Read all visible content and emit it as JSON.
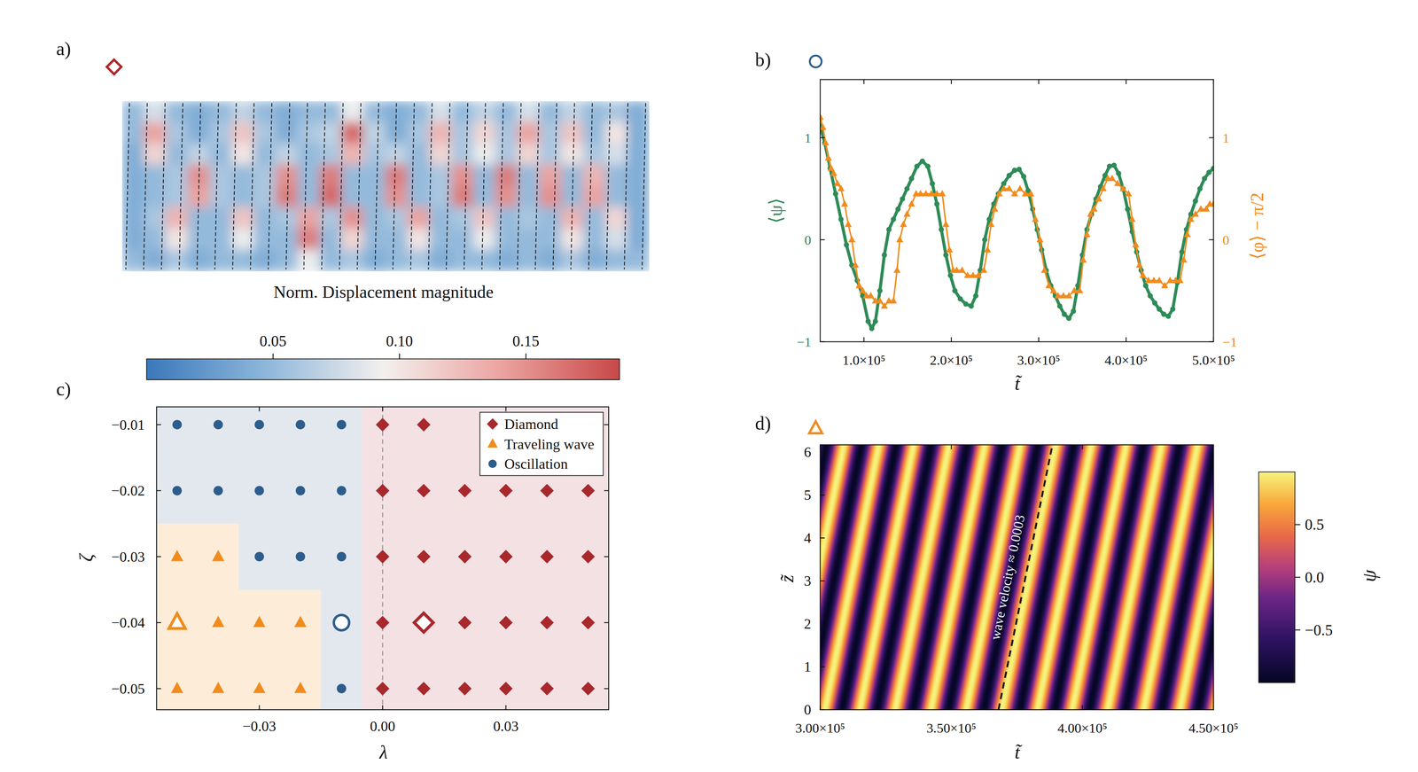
{
  "chart_data": [
    {
      "type": "heatmap",
      "panel_label": "a)",
      "marker": "diamond",
      "color": "#a8282c",
      "cells": [
        [
          0.05,
          0.08,
          0.05,
          0.04,
          0.05,
          0.07,
          0.05,
          0.04,
          0.05,
          0.05,
          0.09,
          0.05,
          0.04,
          0.05,
          0.08,
          0.05,
          0.07,
          0.05,
          0.08,
          0.05,
          0.07,
          0.05,
          0.06,
          0.04
        ],
        [
          0.05,
          0.14,
          0.06,
          0.04,
          0.06,
          0.12,
          0.06,
          0.04,
          0.06,
          0.07,
          0.17,
          0.07,
          0.04,
          0.06,
          0.13,
          0.06,
          0.11,
          0.06,
          0.14,
          0.06,
          0.12,
          0.05,
          0.1,
          0.04
        ],
        [
          0.04,
          0.11,
          0.05,
          0.07,
          0.05,
          0.1,
          0.05,
          0.07,
          0.05,
          0.06,
          0.13,
          0.06,
          0.07,
          0.05,
          0.11,
          0.06,
          0.09,
          0.06,
          0.11,
          0.06,
          0.1,
          0.06,
          0.08,
          0.04
        ],
        [
          0.04,
          0.05,
          0.06,
          0.15,
          0.06,
          0.05,
          0.06,
          0.15,
          0.05,
          0.16,
          0.05,
          0.05,
          0.16,
          0.05,
          0.06,
          0.15,
          0.05,
          0.16,
          0.05,
          0.14,
          0.05,
          0.13,
          0.05,
          0.04
        ],
        [
          0.04,
          0.05,
          0.06,
          0.14,
          0.06,
          0.05,
          0.06,
          0.16,
          0.05,
          0.17,
          0.05,
          0.05,
          0.15,
          0.05,
          0.06,
          0.16,
          0.05,
          0.15,
          0.05,
          0.15,
          0.05,
          0.14,
          0.05,
          0.04
        ],
        [
          0.04,
          0.06,
          0.13,
          0.05,
          0.05,
          0.12,
          0.05,
          0.06,
          0.14,
          0.06,
          0.15,
          0.05,
          0.06,
          0.14,
          0.05,
          0.06,
          0.12,
          0.05,
          0.06,
          0.05,
          0.13,
          0.05,
          0.11,
          0.04
        ],
        [
          0.04,
          0.05,
          0.1,
          0.05,
          0.05,
          0.09,
          0.05,
          0.05,
          0.16,
          0.05,
          0.11,
          0.05,
          0.05,
          0.1,
          0.05,
          0.05,
          0.09,
          0.05,
          0.05,
          0.05,
          0.1,
          0.05,
          0.08,
          0.04
        ],
        [
          0.05,
          0.04,
          0.06,
          0.04,
          0.05,
          0.05,
          0.04,
          0.05,
          0.09,
          0.05,
          0.06,
          0.04,
          0.05,
          0.06,
          0.04,
          0.05,
          0.05,
          0.04,
          0.05,
          0.04,
          0.06,
          0.04,
          0.05,
          0.05
        ]
      ],
      "colorbar": {
        "label": "Norm. Displacement magnitude",
        "range": [
          0,
          0.187
        ],
        "ticks": [
          0.05,
          {
            "value": 0.1,
            "label": "0.10"
          },
          0.15
        ]
      }
    },
    {
      "type": "line",
      "panel_label": "b)",
      "marker": "circle",
      "color": "#2d5d8c",
      "xlabel": "t̃",
      "ylabel": "⟨ψ⟩",
      "y2label": "⟨φ⟩ − π/2",
      "xlim": [
        50000,
        500000
      ],
      "xticks": [
        {
          "value": 100000,
          "label": "1.0×10⁵"
        },
        {
          "value": 200000,
          "label": "2.0×10⁵"
        },
        {
          "value": 300000,
          "label": "3.0×10⁵"
        },
        {
          "value": 400000,
          "label": "4.0×10⁵"
        },
        {
          "value": 500000,
          "label": "5.0×10⁵"
        }
      ],
      "ylim": [
        -1,
        1.57
      ],
      "yticks": [
        {
          "value": -1,
          "label": "−1"
        },
        0,
        1
      ],
      "y2lim": [
        -1,
        1.57
      ],
      "y2ticks": [
        {
          "value": -1,
          "label": "−1"
        },
        0,
        1
      ],
      "series": [
        {
          "color": "#2e8b57",
          "marker": "circle",
          "line_style": "solid",
          "x": [
            50000,
            55200,
            61400,
            67600,
            73800,
            80000,
            86200,
            92400,
            98600,
            104800,
            109000,
            113100,
            118300,
            123400,
            128600,
            133800,
            139000,
            144100,
            149300,
            154500,
            160700,
            166900,
            173100,
            178300,
            183500,
            188600,
            193800,
            199000,
            204100,
            210300,
            216600,
            222800,
            228000,
            233100,
            238300,
            243400,
            248600,
            253800,
            260000,
            266200,
            272400,
            277600,
            282800,
            287900,
            293100,
            298300,
            303400,
            308600,
            313800,
            319000,
            324100,
            329300,
            334500,
            339700,
            344800,
            350000,
            355200,
            360400,
            365500,
            370700,
            375900,
            381000,
            386200,
            391400,
            396600,
            401700,
            406900,
            412100,
            417200,
            422400,
            427600,
            432800,
            437900,
            443100,
            448300,
            453400,
            458600,
            463800,
            469000,
            474100,
            479300,
            484500,
            489700,
            494800,
            500000
          ],
          "values": [
            1.12,
            0.95,
            0.7,
            0.45,
            0.2,
            -0.05,
            -0.25,
            -0.4,
            -0.55,
            -0.8,
            -0.87,
            -0.8,
            -0.5,
            -0.15,
            0.1,
            0.2,
            0.3,
            0.4,
            0.5,
            0.6,
            0.72,
            0.77,
            0.72,
            0.55,
            0.35,
            0.1,
            -0.15,
            -0.35,
            -0.5,
            -0.58,
            -0.63,
            -0.65,
            -0.55,
            -0.3,
            0,
            0.2,
            0.35,
            0.45,
            0.55,
            0.63,
            0.68,
            0.69,
            0.62,
            0.48,
            0.3,
            0.1,
            -0.1,
            -0.3,
            -0.45,
            -0.55,
            -0.65,
            -0.73,
            -0.77,
            -0.7,
            -0.45,
            -0.15,
            0.1,
            0.25,
            0.4,
            0.52,
            0.63,
            0.72,
            0.73,
            0.65,
            0.5,
            0.3,
            0.08,
            -0.12,
            -0.3,
            -0.45,
            -0.55,
            -0.62,
            -0.68,
            -0.73,
            -0.75,
            -0.68,
            -0.42,
            -0.12,
            0.1,
            0.25,
            0.38,
            0.5,
            0.6,
            0.66,
            0.7
          ]
        },
        {
          "color": "#f08c1e",
          "marker": "triangle",
          "line_style": "solid",
          "axis": "y2",
          "x": [
            50000,
            53100,
            56200,
            59300,
            62400,
            65500,
            69700,
            73800,
            77900,
            82100,
            86200,
            90300,
            94500,
            98600,
            102800,
            107900,
            113100,
            118300,
            123400,
            128600,
            133800,
            137900,
            141000,
            145200,
            149300,
            154500,
            159700,
            164800,
            171000,
            177200,
            183500,
            189700,
            193800,
            197900,
            202100,
            206200,
            212400,
            218600,
            224800,
            231000,
            237200,
            241400,
            245500,
            249700,
            254800,
            260000,
            266200,
            272400,
            278600,
            284800,
            291000,
            296200,
            301400,
            306600,
            311700,
            316900,
            322100,
            328300,
            334500,
            340700,
            346900,
            351000,
            355200,
            359300,
            363400,
            368600,
            373800,
            379000,
            384100,
            390300,
            396600,
            402800,
            406900,
            411000,
            415200,
            419300,
            425500,
            431700,
            437900,
            444100,
            450300,
            456600,
            461700,
            465900,
            470000,
            474100,
            479300,
            485500,
            491700,
            495800,
            500000
          ],
          "values": [
            1.2,
            1.1,
            0.95,
            0.8,
            0.7,
            0.65,
            0.55,
            0.5,
            0.35,
            0.15,
            0,
            -0.25,
            -0.45,
            -0.5,
            -0.55,
            -0.55,
            -0.6,
            -0.6,
            -0.65,
            -0.6,
            -0.6,
            -0.3,
            0,
            0.15,
            0.25,
            0.35,
            0.45,
            0.45,
            0.45,
            0.45,
            0.45,
            0.45,
            0.15,
            -0.1,
            -0.3,
            -0.3,
            -0.3,
            -0.35,
            -0.35,
            -0.35,
            -0.3,
            -0.1,
            0.15,
            0.3,
            0.45,
            0.5,
            0.5,
            0.45,
            0.5,
            0.45,
            0.45,
            0.2,
            0,
            -0.3,
            -0.45,
            -0.5,
            -0.55,
            -0.55,
            -0.55,
            -0.5,
            -0.5,
            -0.2,
            0.05,
            0.25,
            0.3,
            0.4,
            0.5,
            0.6,
            0.6,
            0.55,
            0.5,
            0.45,
            0.2,
            -0.05,
            -0.25,
            -0.35,
            -0.4,
            -0.4,
            -0.4,
            -0.45,
            -0.4,
            -0.4,
            -0.4,
            -0.2,
            0.05,
            0.2,
            0.25,
            0.3,
            0.3,
            0.35,
            0.35
          ]
        }
      ]
    },
    {
      "type": "scatter",
      "panel_label": "c)",
      "xlabel": "λ",
      "ylabel": "ζ",
      "xlim": [
        -0.055,
        0.055
      ],
      "ylim": [
        -0.0532,
        -0.0073
      ],
      "xticks": [
        {
          "value": -0.03,
          "label": "−0.03"
        },
        {
          "value": 0,
          "label": "0.00"
        },
        0.03
      ],
      "yticks": [
        {
          "value": -0.01,
          "label": "−0.01"
        },
        {
          "value": -0.02,
          "label": "−0.02"
        },
        {
          "value": -0.03,
          "label": "−0.03"
        },
        {
          "value": -0.04,
          "label": "−0.04"
        },
        {
          "value": -0.05,
          "label": "−0.05"
        }
      ],
      "legend": "upper right",
      "regions": [
        {
          "color": "#e3e8ef",
          "polygon": [
            [
              -0.055,
              -0.0073
            ],
            [
              -0.005,
              -0.0073
            ],
            [
              -0.005,
              -0.0532
            ],
            [
              -0.055,
              -0.0532
            ]
          ]
        },
        {
          "color": "#f3e1e4",
          "polygon": [
            [
              -0.005,
              -0.0073
            ],
            [
              0.055,
              -0.0073
            ],
            [
              0.055,
              -0.0532
            ],
            [
              -0.005,
              -0.0532
            ]
          ]
        },
        {
          "color": "#fdecd8",
          "polygon": [
            [
              -0.055,
              -0.025
            ],
            [
              -0.035,
              -0.025
            ],
            [
              -0.035,
              -0.035
            ],
            [
              -0.015,
              -0.035
            ],
            [
              -0.015,
              -0.0532
            ],
            [
              -0.055,
              -0.0532
            ]
          ]
        }
      ],
      "reference_line": {
        "x": 0,
        "color": "#9a9a9a",
        "line_style": "dashed"
      },
      "series": [
        {
          "name": "Diamond",
          "color": "#a8282c",
          "marker": "diamond",
          "highlight": 15,
          "x": [
            0,
            0.01,
            0,
            0.01,
            0.02,
            0.03,
            0.04,
            0.05,
            0,
            0.01,
            0.02,
            0.03,
            0.04,
            0.05,
            0,
            0.01,
            0.02,
            0.03,
            0.04,
            0.05,
            0,
            0.01,
            0.02,
            0.03,
            0.04,
            0.05
          ],
          "values": [
            -0.01,
            -0.01,
            -0.02,
            -0.02,
            -0.02,
            -0.02,
            -0.02,
            -0.02,
            -0.03,
            -0.03,
            -0.03,
            -0.03,
            -0.03,
            -0.03,
            -0.04,
            -0.04,
            -0.04,
            -0.04,
            -0.04,
            -0.04,
            -0.05,
            -0.05,
            -0.05,
            -0.05,
            -0.05,
            -0.05
          ]
        },
        {
          "name": "Traveling wave",
          "color": "#f08c1e",
          "marker": "triangle",
          "highlight": 2,
          "x": [
            -0.05,
            -0.04,
            -0.05,
            -0.04,
            -0.03,
            -0.02,
            -0.05,
            -0.04,
            -0.03,
            -0.02
          ],
          "values": [
            -0.03,
            -0.03,
            -0.04,
            -0.04,
            -0.04,
            -0.04,
            -0.05,
            -0.05,
            -0.05,
            -0.05
          ]
        },
        {
          "name": "Oscillation",
          "color": "#2d5d8c",
          "marker": "circle",
          "highlight": 13,
          "x": [
            -0.05,
            -0.04,
            -0.03,
            -0.02,
            -0.01,
            -0.05,
            -0.04,
            -0.03,
            -0.02,
            -0.01,
            -0.03,
            -0.02,
            -0.01,
            -0.01,
            -0.01
          ],
          "values": [
            -0.01,
            -0.01,
            -0.01,
            -0.01,
            -0.01,
            -0.02,
            -0.02,
            -0.02,
            -0.02,
            -0.02,
            -0.03,
            -0.03,
            -0.03,
            -0.04,
            -0.05
          ]
        }
      ]
    },
    {
      "type": "wave",
      "panel_label": "d)",
      "marker": "triangle",
      "color": "#f08c1e",
      "xlabel": "t̃",
      "ylabel": "z̃",
      "xlim": [
        300000,
        450000
      ],
      "xticks": [
        {
          "value": 300000,
          "label": "3.00×10⁵"
        },
        {
          "value": 350000,
          "label": "3.50×10⁵"
        },
        {
          "value": 400000,
          "label": "4.00×10⁵"
        },
        {
          "value": 450000,
          "label": "4.50×10⁵"
        }
      ],
      "ylim": [
        0,
        6.17
      ],
      "yticks": [
        0,
        1,
        2,
        3,
        4,
        5,
        6
      ],
      "crests": [
        275200,
        288300,
        302100,
        314800,
        328600,
        342400,
        355500,
        369300,
        383100,
        395900,
        409600,
        423400,
        437200,
        451000
      ],
      "velocity": 0.0003,
      "reference_line": {
        "t": 368000,
        "line_style": "dashed"
      },
      "annotation": "wave velocity ≈ 0.0003",
      "colorbar": {
        "label": "ψ",
        "range": [
          -1,
          1
        ],
        "ticks": [
          {
            "value": -0.5,
            "label": "−0.5"
          },
          {
            "value": 0,
            "label": "0.0"
          },
          0.5
        ]
      }
    }
  ]
}
